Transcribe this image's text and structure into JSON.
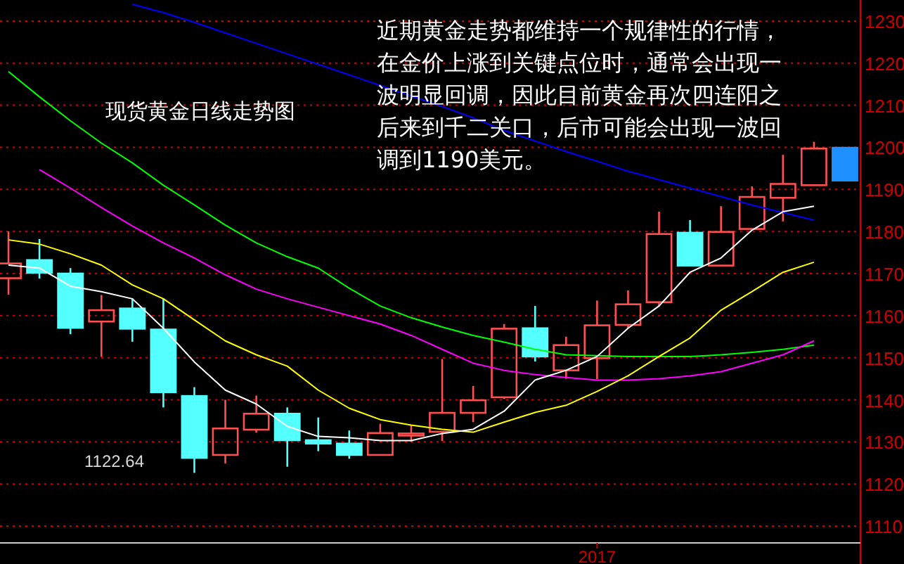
{
  "chart_data": {
    "type": "candlestick",
    "title": "现货黄金日线走势图",
    "annotations": [
      "近期黄金走势都维持一个规律性的行情，在金价上涨到关键点位时，通常会出现一波明显回调，因此目前黄金再次四连阳之后来到千二关口，后市可能会出现一波回调到1190美元。",
      "1122.64"
    ],
    "categories": [
      null,
      null,
      null,
      null,
      null,
      null,
      null,
      null,
      null,
      null,
      null,
      null,
      null,
      null,
      null,
      null,
      null,
      null,
      null,
      "2017",
      null,
      null,
      null,
      null,
      null,
      null,
      null,
      null
    ],
    "ohlc": [
      [
        1168.9,
        1180,
        1165,
        1172.4
      ],
      [
        1173.2,
        1178.2,
        1168.8,
        1170.2
      ],
      [
        1170,
        1171.3,
        1155.6,
        1157.1
      ],
      [
        1158.6,
        1164.9,
        1150.2,
        1161.3
      ],
      [
        1161.7,
        1164.1,
        1153.8,
        1156.9
      ],
      [
        1156.7,
        1164.1,
        1138.2,
        1141.8
      ],
      [
        1140.9,
        1143,
        1122.64,
        1126.2
      ],
      [
        1126.9,
        1140,
        1124.9,
        1133.2
      ],
      [
        1132.9,
        1141,
        1132.2,
        1136.7
      ],
      [
        1136.7,
        1138.2,
        1124.1,
        1130.4
      ],
      [
        1130.4,
        1135.8,
        1127.8,
        1129.6
      ],
      [
        1129.6,
        1132.7,
        1126,
        1126.9
      ],
      [
        1126.9,
        1134.3,
        1126.9,
        1132.1
      ],
      [
        1131.5,
        1134,
        1130,
        1132
      ],
      [
        1132.4,
        1149.7,
        1130.2,
        1136.9
      ],
      [
        1136.9,
        1143.3,
        1134.7,
        1139.9
      ],
      [
        1140.6,
        1158,
        1140.2,
        1156.9
      ],
      [
        1157,
        1162.3,
        1149.1,
        1150.3
      ],
      [
        1147,
        1155,
        1145,
        1153
      ],
      [
        1149.9,
        1163.6,
        1144.9,
        1157.7
      ],
      [
        1157.8,
        1166,
        1157,
        1162.7
      ],
      [
        1163.2,
        1184.7,
        1162.2,
        1179.4
      ],
      [
        1179.7,
        1182.7,
        1171.9,
        1171.9
      ],
      [
        1171.9,
        1186,
        1171.9,
        1179.9
      ],
      [
        1180.6,
        1190.7,
        1180.6,
        1188.2
      ],
      [
        1188,
        1198.2,
        1182.4,
        1191.3
      ],
      [
        1191,
        1201.3,
        1191,
        1199.7
      ],
      [
        1199.9,
        1199.9,
        1192.1,
        1192.1
      ]
    ],
    "colors": [
      "#ff5050",
      "#54ffff",
      "#54ffff",
      "#ff5050",
      "#54ffff",
      "#54ffff",
      "#54ffff",
      "#ff5050",
      "#ff5050",
      "#54ffff",
      "#54ffff",
      "#54ffff",
      "#ff5050",
      "#ff5050",
      "#ff5050",
      "#ff5050",
      "#ff5050",
      "#54ffff",
      "#ff5050",
      "#ff5050",
      "#ff5050",
      "#ff5050",
      "#54ffff",
      "#ff5050",
      "#ff5050",
      "#ff5050",
      "#ff5050",
      "#1e90ff"
    ],
    "series": [
      {
        "type": "line",
        "color": "#0000ff",
        "values": [
          null,
          null,
          null,
          null,
          1234,
          1232,
          1229.7,
          1227.2,
          1224.7,
          1222.2,
          1219.7,
          1217.2,
          1214.7,
          1212.2,
          1209.7,
          1207,
          1204,
          1201.5,
          1199,
          1196.7,
          1194.3,
          1192.3,
          1190.3,
          1188.3,
          1186.3,
          1184.5,
          1182.7,
          null
        ]
      },
      {
        "type": "line",
        "color": "#00ff00",
        "values": [
          1218,
          1212,
          1206.3,
          1201,
          1196.3,
          1191,
          1186.3,
          1181.5,
          1177.3,
          1174,
          1171.3,
          1166.5,
          1162.3,
          1159.5,
          1157.3,
          1155.3,
          1153.7,
          1152,
          1150.7,
          1150.5,
          1150.3,
          1150.3,
          1150.3,
          1150.7,
          1151.3,
          1152,
          1153,
          null
        ]
      },
      {
        "type": "line",
        "color": "#ff00ff",
        "values": [
          null,
          1194.7,
          1190.3,
          1185.7,
          1181.3,
          1177.3,
          1173.7,
          1169.7,
          1166.3,
          1164,
          1162,
          1160,
          1158,
          1155.3,
          1152,
          1148.7,
          1147,
          1146,
          1145.3,
          1144.7,
          1144.7,
          1145,
          1145.7,
          1146.7,
          1148.7,
          1150.7,
          1154,
          null
        ]
      },
      {
        "type": "line",
        "color": "#ffff00",
        "values": [
          1178,
          1177,
          1174.7,
          1172,
          1167.3,
          1164,
          1159,
          1154,
          1150.7,
          1148,
          1142.3,
          1138,
          1135.3,
          1134,
          1133,
          1132.3,
          1134.7,
          1137,
          1138.7,
          1142,
          1145.7,
          1150.3,
          1154.7,
          1161.3,
          1165.7,
          1170.3,
          1172.7,
          null
        ]
      },
      {
        "type": "line",
        "color": "#ffffff",
        "values": [
          1172,
          1171.3,
          1167,
          1165.7,
          1164,
          1157,
          1149,
          1142.3,
          1139,
          1133.7,
          1131.3,
          1131,
          1130.3,
          1130.3,
          1132,
          1133,
          1137.3,
          1144.7,
          1147,
          1150.3,
          1157,
          1162.3,
          1170.3,
          1173.7,
          1180.3,
          1184.7,
          1186,
          null
        ]
      }
    ],
    "ylim": [
      1106,
      1235
    ],
    "yticks": [
      1110,
      1120,
      1130,
      1140,
      1150,
      1160,
      1170,
      1180,
      1190,
      1200,
      1210,
      1220,
      1230
    ],
    "grid": "y"
  }
}
